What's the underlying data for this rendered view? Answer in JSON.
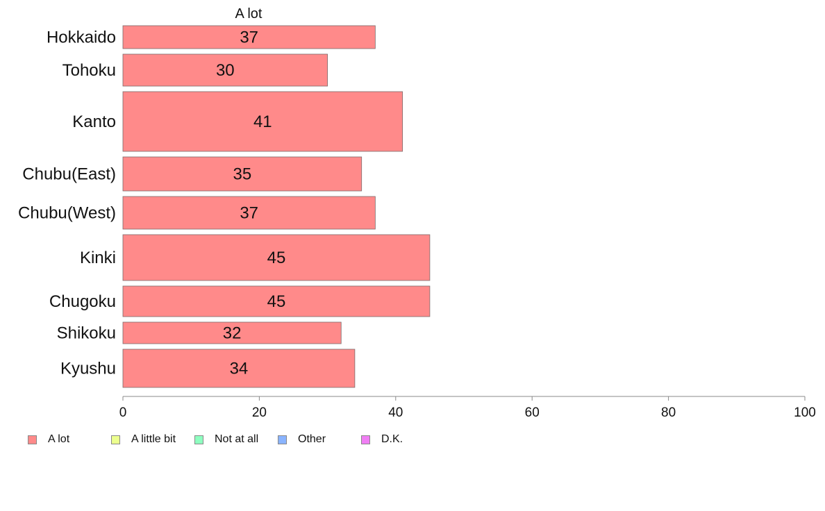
{
  "chart_data": {
    "type": "bar",
    "orientation": "horizontal",
    "title": "A lot",
    "categories": [
      "Hokkaido",
      "Tohoku",
      "Kanto",
      "Chubu(East)",
      "Chubu(West)",
      "Kinki",
      "Chugoku",
      "Shikoku",
      "Kyushu"
    ],
    "series": [
      {
        "name": "A lot",
        "color": "#ff8a8a",
        "values": [
          37,
          30,
          41,
          35,
          37,
          45,
          45,
          32,
          34
        ]
      }
    ],
    "xlim": [
      0,
      100
    ],
    "xticks": [
      "0",
      "20",
      "40",
      "60",
      "80",
      "100"
    ],
    "grid": false,
    "legend_position": "bottom-left",
    "legend": [
      {
        "label": "A lot",
        "color": "#ff8a8a"
      },
      {
        "label": "A little bit",
        "color": "#ecff8e"
      },
      {
        "label": "Not at all",
        "color": "#8effc0"
      },
      {
        "label": "Other",
        "color": "#8ab4ff"
      },
      {
        "label": "D.K.",
        "color": "#f07ef4"
      }
    ]
  }
}
